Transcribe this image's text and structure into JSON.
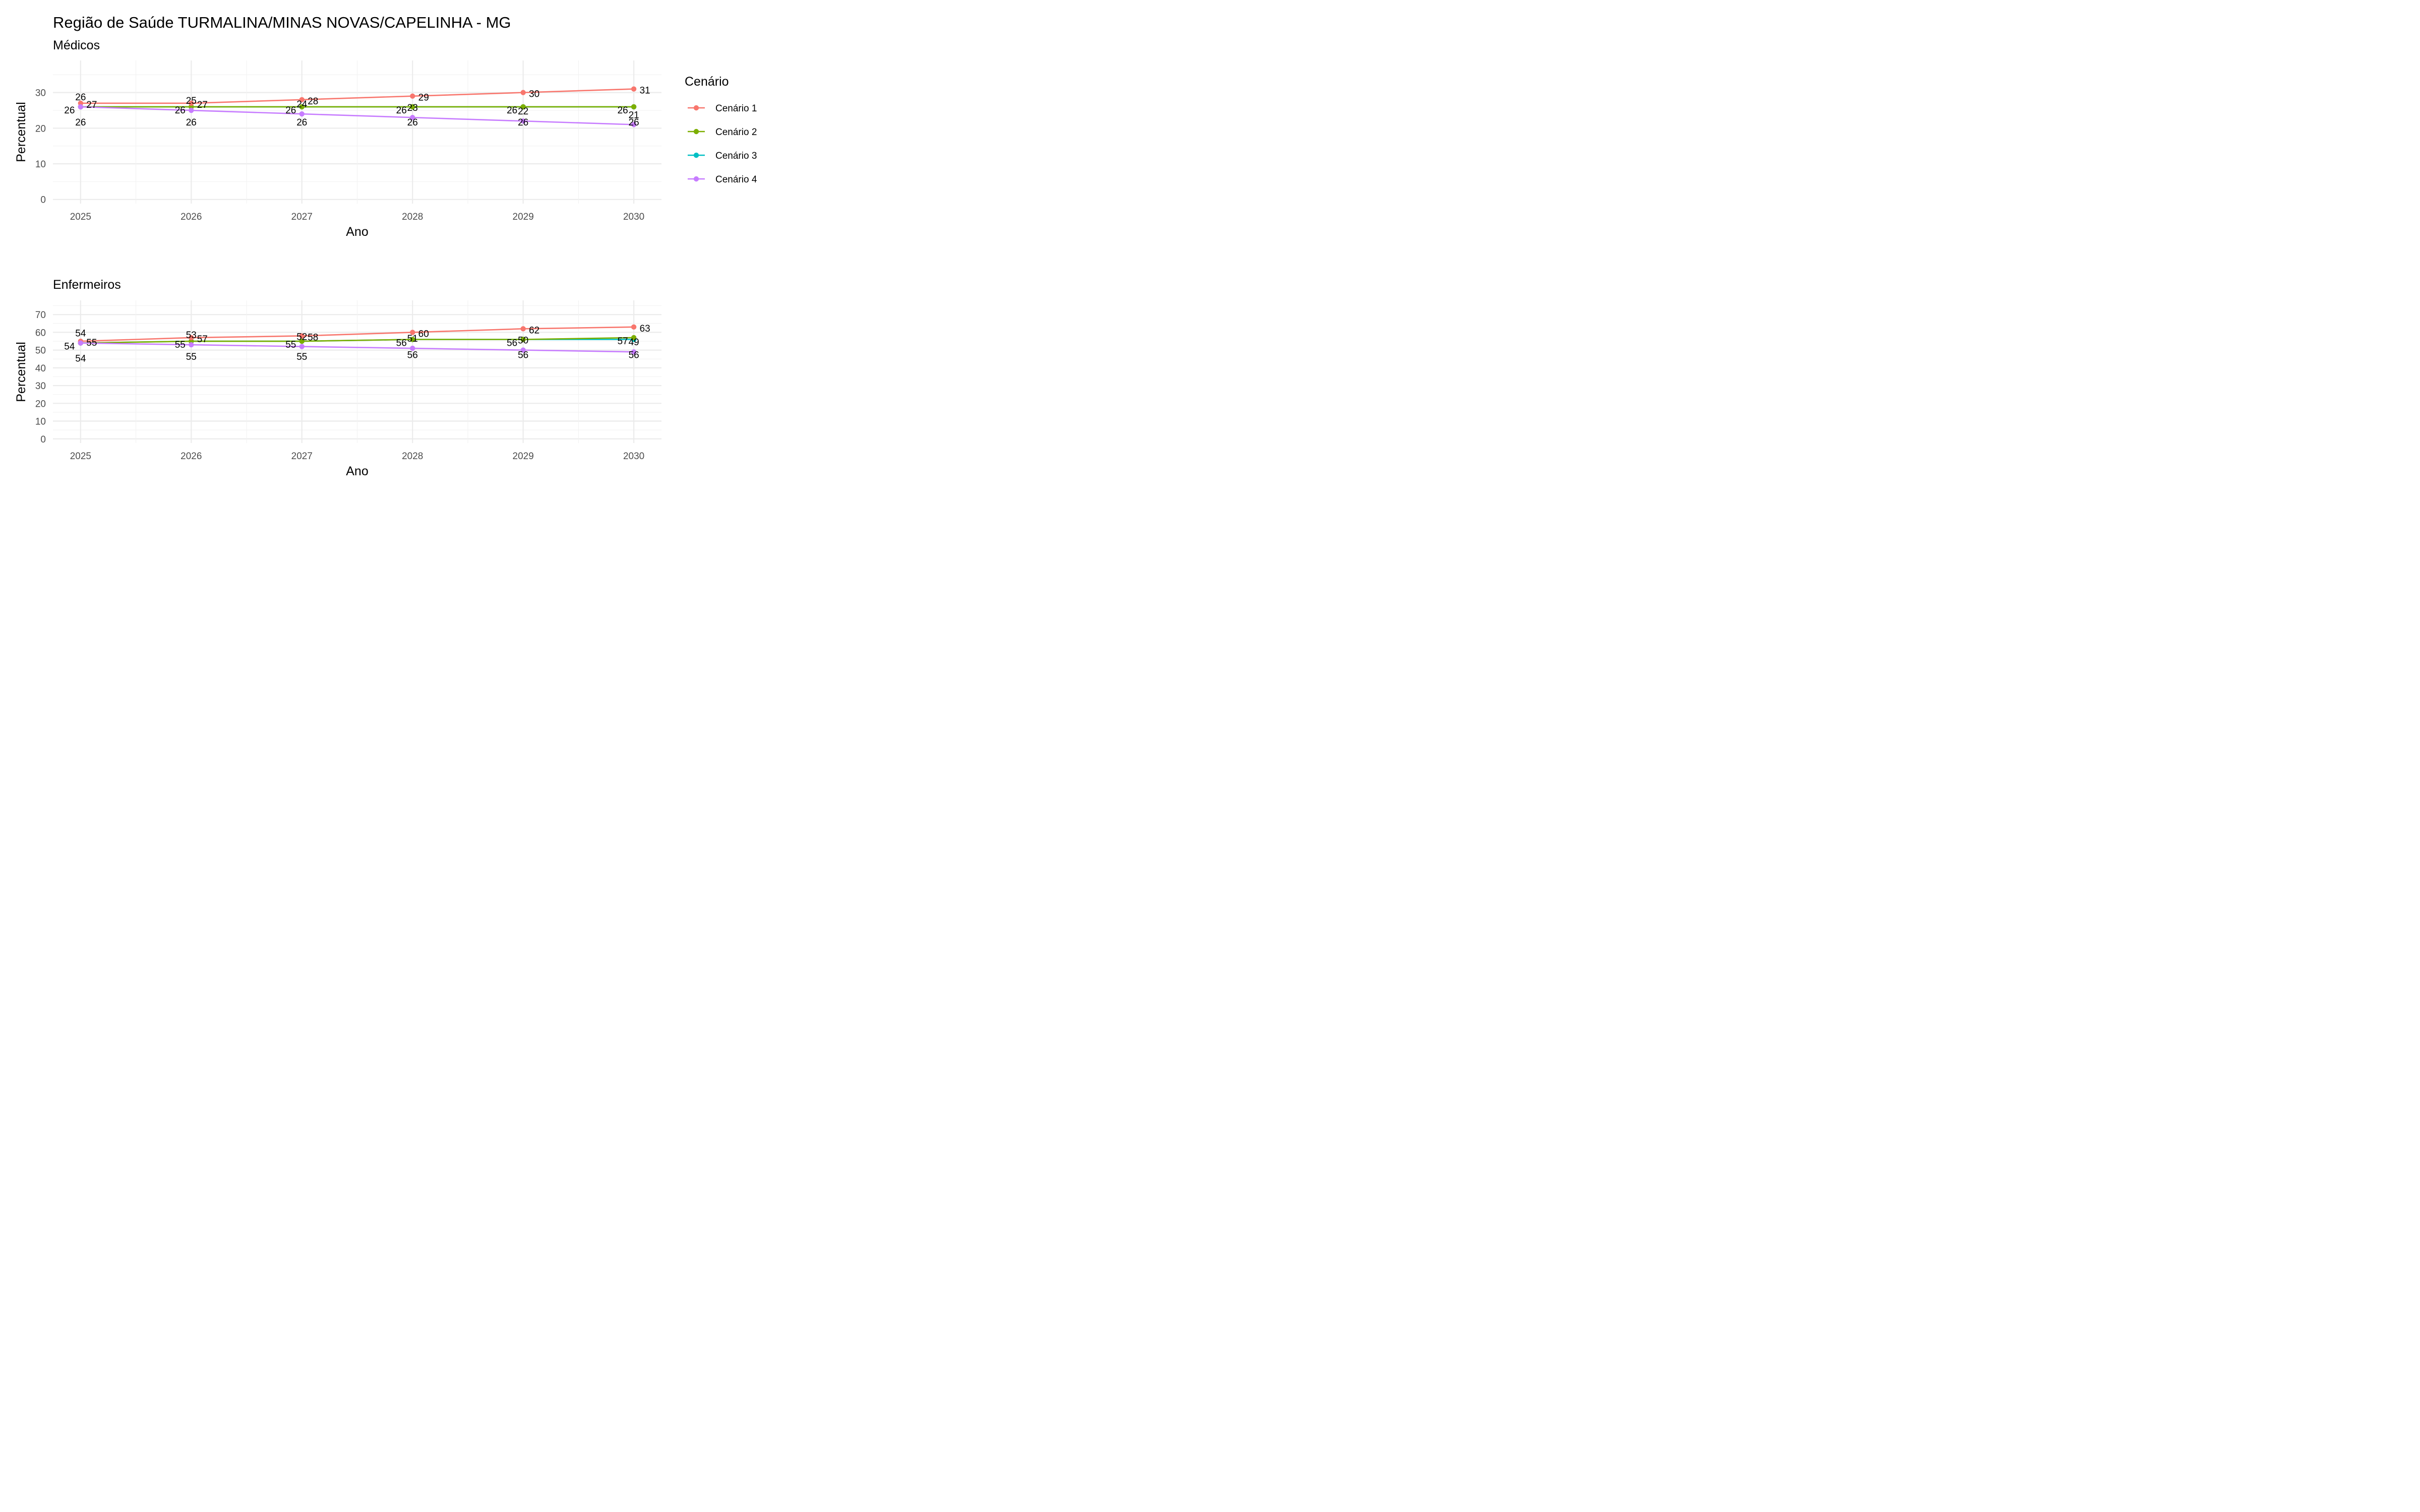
{
  "title": "Região de Saúde TURMALINA/MINAS NOVAS/CAPELINHA - MG",
  "legend": {
    "title": "Cenário",
    "position": "right",
    "entries": [
      {
        "name": "Cenário 1",
        "color": "#F8766D"
      },
      {
        "name": "Cenário 2",
        "color": "#7CAE00"
      },
      {
        "name": "Cenário 3",
        "color": "#00BFC4"
      },
      {
        "name": "Cenário 4",
        "color": "#C77CFF"
      }
    ]
  },
  "chart_data": [
    {
      "type": "line",
      "title": "Médicos",
      "xlabel": "Ano",
      "ylabel": "Percentual",
      "x": [
        2025,
        2026,
        2027,
        2028,
        2029,
        2030
      ],
      "xticks": [
        "2025",
        "2026",
        "2027",
        "2028",
        "2029",
        "2030"
      ],
      "yticks": [
        "0",
        "10",
        "20",
        "30"
      ],
      "ylim": [
        0,
        35
      ],
      "grid": true,
      "series": [
        {
          "name": "Cenário 1",
          "color": "#F8766D",
          "values": [
            27,
            27,
            28,
            29,
            30,
            31
          ]
        },
        {
          "name": "Cenário 2",
          "color": "#7CAE00",
          "values": [
            26,
            26,
            26,
            26,
            26,
            26
          ]
        },
        {
          "name": "Cenário 3",
          "color": "#00BFC4",
          "values": [
            26,
            26,
            26,
            26,
            26,
            26
          ]
        },
        {
          "name": "Cenário 4",
          "color": "#C77CFF",
          "values": [
            26,
            25,
            24,
            23,
            22,
            21
          ]
        }
      ],
      "data_labels": [
        [
          "27",
          "27",
          "28",
          "29",
          "30",
          "31"
        ],
        [
          "26",
          "26",
          "26",
          "26",
          "26",
          "26"
        ],
        [
          "26",
          "26",
          "26",
          "26",
          "26",
          "26"
        ],
        [
          "26",
          "25",
          "24",
          "23",
          "22",
          "21"
        ]
      ]
    },
    {
      "type": "line",
      "title": "Enfermeiros",
      "xlabel": "Ano",
      "ylabel": "Percentual",
      "x": [
        2025,
        2026,
        2027,
        2028,
        2029,
        2030
      ],
      "xticks": [
        "2025",
        "2026",
        "2027",
        "2028",
        "2029",
        "2030"
      ],
      "yticks": [
        "0",
        "10",
        "20",
        "30",
        "40",
        "50",
        "60",
        "70"
      ],
      "ylim": [
        0,
        70
      ],
      "grid": true,
      "series": [
        {
          "name": "Cenário 1",
          "color": "#F8766D",
          "values": [
            55,
            57,
            58,
            60,
            62,
            63
          ]
        },
        {
          "name": "Cenário 2",
          "color": "#7CAE00",
          "values": [
            54,
            55,
            55,
            56,
            56,
            57
          ]
        },
        {
          "name": "Cenário 3",
          "color": "#00BFC4",
          "values": [
            54,
            55,
            55,
            56,
            56,
            56
          ]
        },
        {
          "name": "Cenário 4",
          "color": "#C77CFF",
          "values": [
            54,
            53,
            52,
            51,
            50,
            49
          ]
        }
      ],
      "data_labels": [
        [
          "55",
          "57",
          "58",
          "60",
          "62",
          "63"
        ],
        [
          "54",
          "55",
          "55",
          "56",
          "56",
          "57"
        ],
        [
          "54",
          "55",
          "55",
          "56",
          "56",
          "56"
        ],
        [
          "54",
          "53",
          "52",
          "51",
          "50",
          "49"
        ]
      ]
    }
  ]
}
